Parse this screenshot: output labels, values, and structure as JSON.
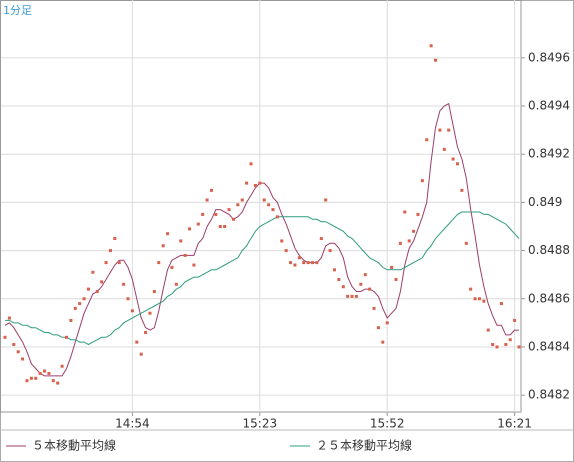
{
  "chart_data": {
    "type": "line",
    "subtitle": "1分足",
    "categories": [
      null,
      null,
      null,
      null,
      null,
      null,
      null,
      null,
      null,
      null,
      null,
      null,
      null,
      null,
      null,
      null,
      null,
      null,
      null,
      null,
      null,
      null,
      null,
      null,
      null,
      null,
      null,
      null,
      null,
      "14:54",
      null,
      null,
      null,
      null,
      null,
      null,
      null,
      null,
      null,
      null,
      null,
      null,
      null,
      null,
      null,
      null,
      null,
      null,
      null,
      null,
      null,
      null,
      null,
      null,
      null,
      null,
      null,
      null,
      "15:23",
      null,
      null,
      null,
      null,
      null,
      null,
      null,
      null,
      null,
      null,
      null,
      null,
      null,
      null,
      null,
      null,
      null,
      null,
      null,
      null,
      null,
      null,
      null,
      null,
      null,
      null,
      null,
      null,
      "15:52",
      null,
      null,
      null,
      null,
      null,
      null,
      null,
      null,
      null,
      null,
      null,
      null,
      null,
      null,
      null,
      null,
      null,
      null,
      null,
      null,
      null,
      null,
      null,
      null,
      null,
      null,
      null,
      null,
      "16:21",
      null
    ],
    "values": [
      0.84844,
      0.84852,
      0.84841,
      0.84838,
      0.84835,
      0.84826,
      0.84827,
      0.84827,
      0.84829,
      0.8483,
      0.84829,
      0.84826,
      0.84825,
      0.84832,
      0.84844,
      0.84851,
      0.84856,
      0.84858,
      0.8486,
      0.84864,
      0.84871,
      0.84863,
      0.84867,
      0.84875,
      0.8488,
      0.84885,
      0.84875,
      0.84866,
      0.8486,
      0.84855,
      0.84842,
      0.84837,
      0.84846,
      0.84854,
      0.84863,
      0.84875,
      0.84882,
      0.84887,
      0.84873,
      0.84866,
      0.84884,
      0.84878,
      0.84889,
      0.84874,
      0.84891,
      0.84895,
      0.84901,
      0.84905,
      0.84895,
      0.8489,
      0.8489,
      0.84897,
      0.84893,
      0.84899,
      0.84901,
      0.84908,
      0.84916,
      0.84907,
      0.84908,
      0.84901,
      0.84899,
      0.84897,
      0.84894,
      0.84884,
      0.8488,
      0.84875,
      0.84874,
      0.84877,
      0.84875,
      0.84875,
      0.84875,
      0.84875,
      0.84885,
      0.84901,
      0.8488,
      0.84872,
      0.84868,
      0.84865,
      0.84861,
      0.84861,
      0.84861,
      0.84866,
      0.8487,
      0.84864,
      0.84856,
      0.84848,
      0.84842,
      0.8485,
      0.84873,
      0.84868,
      0.84883,
      0.84896,
      0.84884,
      0.84888,
      0.84895,
      0.84909,
      0.84926,
      0.84965,
      0.84959,
      0.8493,
      0.84922,
      0.8493,
      0.84918,
      0.84916,
      0.84905,
      0.84883,
      0.84864,
      0.8486,
      0.8486,
      0.84859,
      0.84847,
      0.84841,
      0.8484,
      0.84858,
      0.84841,
      0.84843,
      0.84851,
      0.8484
    ],
    "color": "#d8604c",
    "series": [
      {
        "name": "５本移動平均線",
        "color": "#9c3d6b",
        "values": [
          0.84849,
          0.8485,
          0.84848,
          0.84845,
          0.84842,
          0.84838,
          0.84833,
          0.84831,
          0.84829,
          0.84828,
          0.84828,
          0.84828,
          0.84828,
          0.84828,
          0.84831,
          0.84836,
          0.84842,
          0.84848,
          0.84854,
          0.84858,
          0.84862,
          0.84863,
          0.84865,
          0.84868,
          0.84871,
          0.84874,
          0.84876,
          0.84876,
          0.84873,
          0.84868,
          0.8486,
          0.84852,
          0.84848,
          0.84847,
          0.84848,
          0.84855,
          0.84864,
          0.84872,
          0.84876,
          0.84877,
          0.84878,
          0.84878,
          0.84878,
          0.84878,
          0.84883,
          0.84885,
          0.8489,
          0.84893,
          0.84897,
          0.84897,
          0.84896,
          0.84895,
          0.84893,
          0.84894,
          0.84896,
          0.849,
          0.84903,
          0.84906,
          0.84908,
          0.84908,
          0.84906,
          0.84902,
          0.849,
          0.84895,
          0.84891,
          0.84886,
          0.84881,
          0.84878,
          0.84876,
          0.84875,
          0.84875,
          0.84875,
          0.84877,
          0.84882,
          0.84883,
          0.84883,
          0.84881,
          0.84877,
          0.84869,
          0.84865,
          0.84863,
          0.84863,
          0.84864,
          0.84864,
          0.84863,
          0.84861,
          0.84856,
          0.84852,
          0.84854,
          0.84856,
          0.84863,
          0.84874,
          0.84881,
          0.84884,
          0.84889,
          0.84894,
          0.849,
          0.84917,
          0.84931,
          0.84938,
          0.8494,
          0.84941,
          0.84932,
          0.84923,
          0.84918,
          0.8491,
          0.84897,
          0.84886,
          0.84874,
          0.84865,
          0.84858,
          0.84853,
          0.84849,
          0.84849,
          0.84845,
          0.84845,
          0.84847,
          0.84847
        ]
      },
      {
        "name": "２５本移動平均線",
        "color": "#2e9c80",
        "values": [
          0.84851,
          0.84851,
          0.8485,
          0.8485,
          0.84849,
          0.84849,
          0.84848,
          0.84848,
          0.84847,
          0.84846,
          0.84846,
          0.84845,
          0.84845,
          0.84844,
          0.84844,
          0.84843,
          0.84843,
          0.84842,
          0.84842,
          0.84841,
          0.84842,
          0.84843,
          0.84844,
          0.84844,
          0.84845,
          0.84847,
          0.84848,
          0.8485,
          0.84851,
          0.84852,
          0.84853,
          0.84854,
          0.84855,
          0.84856,
          0.84857,
          0.84858,
          0.84859,
          0.84861,
          0.84862,
          0.84864,
          0.84865,
          0.84867,
          0.84868,
          0.84869,
          0.84869,
          0.8487,
          0.84871,
          0.84872,
          0.84872,
          0.84873,
          0.84874,
          0.84875,
          0.84876,
          0.84877,
          0.8488,
          0.84882,
          0.84885,
          0.84888,
          0.8489,
          0.84891,
          0.84892,
          0.84893,
          0.84894,
          0.84894,
          0.84894,
          0.84894,
          0.84894,
          0.84894,
          0.84894,
          0.84894,
          0.84893,
          0.84893,
          0.84892,
          0.84892,
          0.84891,
          0.8489,
          0.84889,
          0.84888,
          0.84886,
          0.84885,
          0.84883,
          0.84881,
          0.84879,
          0.84877,
          0.84876,
          0.84875,
          0.84873,
          0.84872,
          0.84872,
          0.84872,
          0.84872,
          0.84873,
          0.84874,
          0.84875,
          0.84876,
          0.84877,
          0.8488,
          0.84882,
          0.84885,
          0.84887,
          0.84889,
          0.84891,
          0.84893,
          0.84895,
          0.84896,
          0.84896,
          0.84896,
          0.84896,
          0.84896,
          0.84895,
          0.84895,
          0.84894,
          0.84893,
          0.84892,
          0.84891,
          0.84889,
          0.84887,
          0.84885
        ]
      }
    ],
    "ylim": [
      0.84813,
      0.84984
    ],
    "yticks": [
      0.8482,
      0.8484,
      0.8486,
      0.8488,
      0.849,
      0.8492,
      0.8494,
      0.8496
    ],
    "grid": true
  }
}
